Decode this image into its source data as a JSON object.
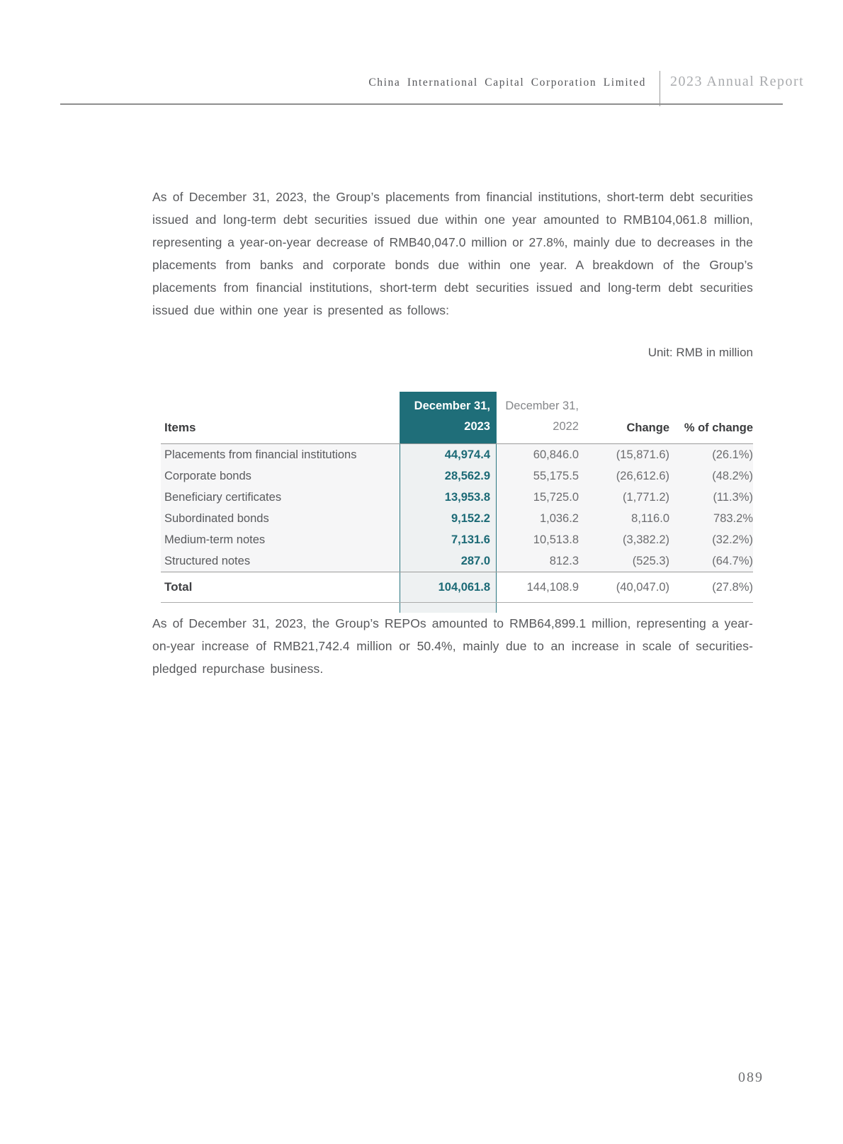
{
  "header": {
    "company": "China International Capital Corporation Limited",
    "report": "2023 Annual Report"
  },
  "intro_paragraph": "As of December 31, 2023, the Group’s placements from financial institutions, short-term debt securities issued and long-term debt securities issued due within one year amounted to RMB104,061.8 million, representing a year-on-year decrease of RMB40,047.0 million or 27.8%, mainly due to decreases in the placements from banks and corporate bonds due within one year. A breakdown of the Group’s placements from financial institutions, short-term debt securities issued and long-term debt securities issued due within one year is presented as follows:",
  "unit_note": "Unit: RMB in million",
  "table": {
    "headers": {
      "items": "Items",
      "col_2023_line1": "December 31,",
      "col_2023_line2": "2023",
      "col_2022_line1": "December 31,",
      "col_2022_line2": "2022",
      "change": "Change",
      "pct_change": "% of change"
    },
    "rows": [
      {
        "item": "Placements from financial institutions",
        "y2023": "44,974.4",
        "y2022": "60,846.0",
        "change": "(15,871.6)",
        "pct": "(26.1%)"
      },
      {
        "item": "Corporate bonds",
        "y2023": "28,562.9",
        "y2022": "55,175.5",
        "change": "(26,612.6)",
        "pct": "(48.2%)"
      },
      {
        "item": "Beneficiary certificates",
        "y2023": "13,953.8",
        "y2022": "15,725.0",
        "change": "(1,771.2)",
        "pct": "(11.3%)"
      },
      {
        "item": "Subordinated bonds",
        "y2023": "9,152.2",
        "y2022": "1,036.2",
        "change": "8,116.0",
        "pct": "783.2%"
      },
      {
        "item": "Medium-term notes",
        "y2023": "7,131.6",
        "y2022": "10,513.8",
        "change": "(3,382.2)",
        "pct": "(32.2%)"
      },
      {
        "item": "Structured notes",
        "y2023": "287.0",
        "y2022": "812.3",
        "change": "(525.3)",
        "pct": "(64.7%)"
      }
    ],
    "total": {
      "item": "Total",
      "y2023": "104,061.8",
      "y2022": "144,108.9",
      "change": "(40,047.0)",
      "pct": "(27.8%)"
    }
  },
  "closing_paragraph": "As of December 31, 2023, the Group’s REPOs amounted to RMB64,899.1 million, representing a year-on-year increase of RMB21,742.4 million or 50.4%, mainly due to an increase in scale of securities-pledged repurchase business.",
  "page_number": "089",
  "colors": {
    "accent_teal": "#1f6e79",
    "value_teal": "#1c6a76",
    "highlight_column_bg": "#eef1f2",
    "row_stripe": "#f6f6f7",
    "body_text": "#57585b"
  }
}
